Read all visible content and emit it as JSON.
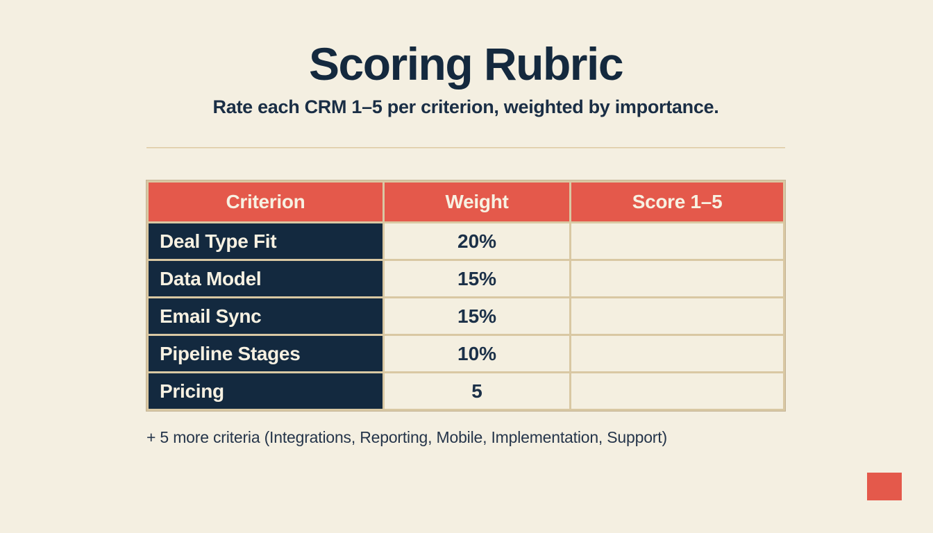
{
  "slide": {
    "title": "Scoring Rubric",
    "subtitle": "Rate each CRM 1–5 per criterion, weighted by importance."
  },
  "table": {
    "columns": [
      "Criterion",
      "Weight",
      "Score 1–5"
    ],
    "rows": [
      {
        "criterion": "Deal Type Fit",
        "weight": "20%",
        "score": ""
      },
      {
        "criterion": "Data Model",
        "weight": "15%",
        "score": ""
      },
      {
        "criterion": "Email Sync",
        "weight": "15%",
        "score": ""
      },
      {
        "criterion": "Pipeline Stages",
        "weight": "10%",
        "score": ""
      },
      {
        "criterion": "Pricing",
        "weight": "5",
        "score": ""
      }
    ]
  },
  "footnote": "+ 5 more criteria (Integrations, Reporting, Mobile, Implementation, Support)",
  "colors": {
    "background": "#f4efe1",
    "accent_coral": "#e4594b",
    "navy_cell": "#13293f",
    "border_tan": "#d9c8a3",
    "text_navy": "#14293e",
    "light_text": "#f7f1e2"
  }
}
